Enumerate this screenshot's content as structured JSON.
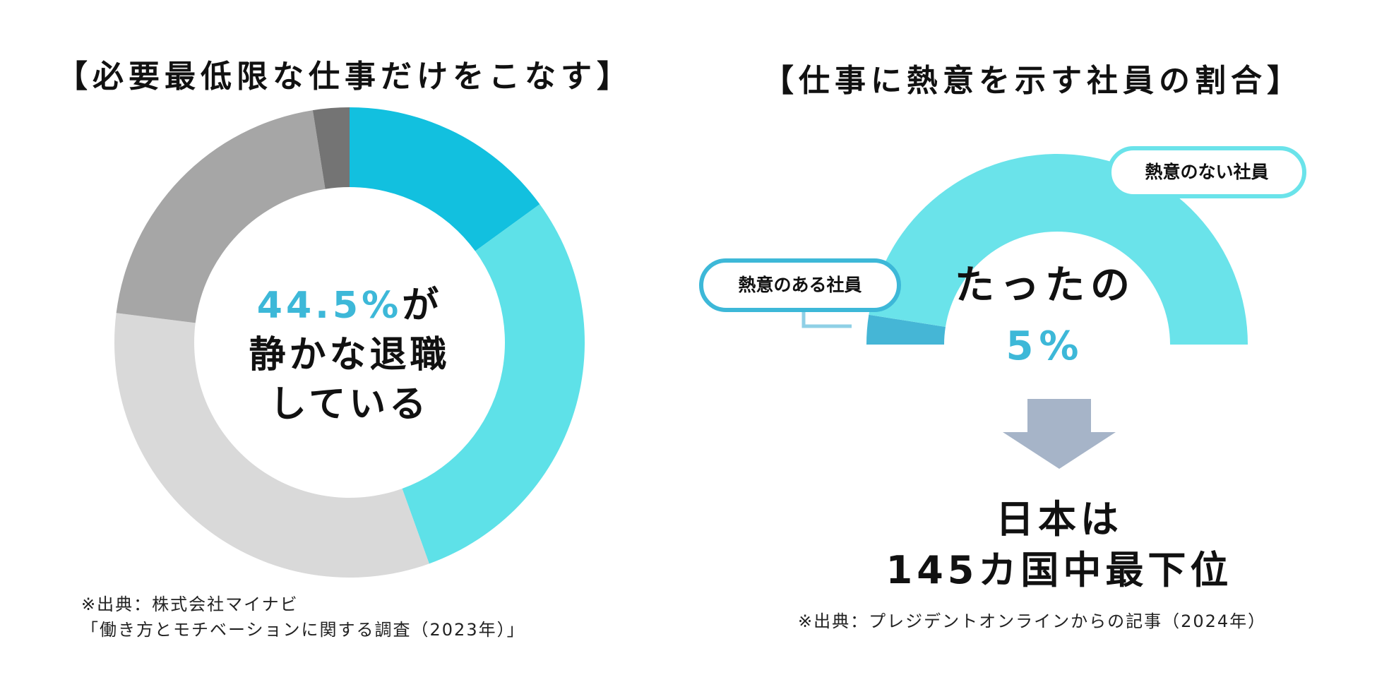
{
  "left_title": "【必要最低限な仕事だけをこなす】",
  "right_title": "【仕事に熱意を示す社員の割合】",
  "left_center": {
    "value": "44.5%",
    "suffix": "が",
    "line2": "静かな退職",
    "line3": "している"
  },
  "right_center": {
    "line1": "たったの",
    "value": "5%"
  },
  "conclusion": {
    "line1": "日本は",
    "line2": "145カ国中最下位"
  },
  "source_left": {
    "line1": "※出典：株式会社マイナビ",
    "line2": "「働き方とモチベーションに関する調査（2023年）」"
  },
  "source_right": "※出典：プレジデントオンラインからの記事（2024年）",
  "labels": {
    "disengaged": "熱意のない社員",
    "engaged": "熱意のある社員"
  },
  "colors": {
    "accent_dark": "#12c0df",
    "accent_light": "#5ee1e8",
    "gray_light": "#d9d9d9",
    "gray_mid": "#a6a6a6",
    "gray_dark": "#747474",
    "gauge_main": "#6ae3ea",
    "gauge_engaged": "#45b6d6",
    "arrow": "#a6b4c8"
  },
  "chart_data": [
    {
      "type": "pie",
      "slices": [
        {
          "value": 15.0,
          "color": "#12c0df"
        },
        {
          "value": 29.5,
          "color": "#5ee1e8"
        },
        {
          "value": 32.5,
          "color": "#d9d9d9"
        },
        {
          "value": 20.5,
          "color": "#a6a6a6"
        },
        {
          "value": 2.5,
          "color": "#747474"
        }
      ],
      "annotation": "44.5%"
    },
    {
      "type": "pie",
      "half": true,
      "slices": [
        {
          "name": "熱意のある社員",
          "value": 5,
          "color": "#45b6d6"
        },
        {
          "name": "熱意のない社員",
          "value": 95,
          "color": "#6ae3ea"
        }
      ],
      "annotation": "5%"
    }
  ]
}
